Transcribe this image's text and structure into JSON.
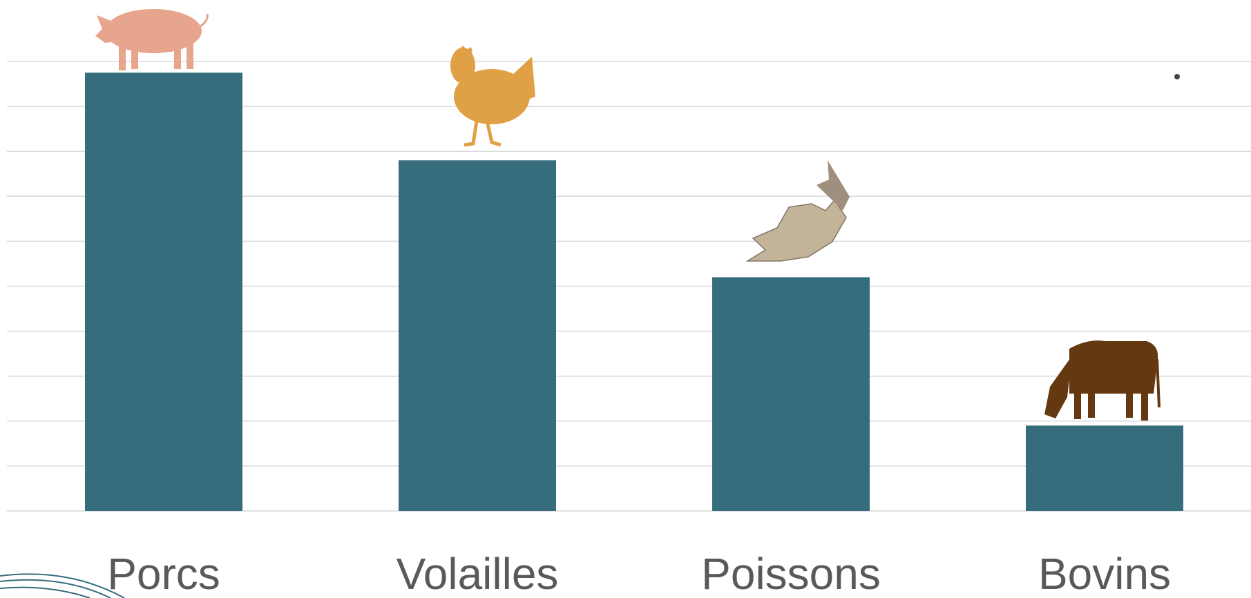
{
  "chart_data": {
    "type": "bar",
    "categories": [
      "Porcs",
      "Volailles",
      "Poissons",
      "Bovins"
    ],
    "values": [
      9.75,
      7.8,
      5.2,
      1.9
    ],
    "color": "#356d7d",
    "ylim": [
      0,
      10
    ],
    "yticks": [
      0,
      1,
      2,
      3,
      4,
      5,
      6,
      7,
      8,
      9,
      10
    ],
    "grid": true
  }
}
